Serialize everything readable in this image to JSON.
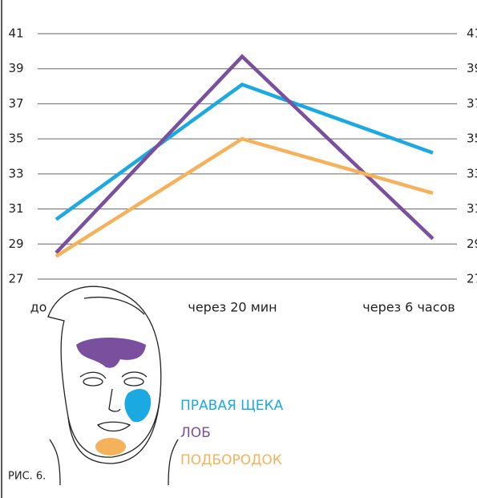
{
  "chart_data": {
    "type": "line",
    "categories": [
      "до",
      "через 20 мин",
      "через 6 часов"
    ],
    "series": [
      {
        "name": "ПРАВАЯ ЩЕКА",
        "color": "#1ba9e1",
        "values": [
          30.4,
          38.1,
          34.2
        ]
      },
      {
        "name": "ЛОБ",
        "color": "#7a4f9e",
        "values": [
          28.5,
          39.7,
          29.3
        ]
      },
      {
        "name": "ПОДБОРОДОК",
        "color": "#f6b25b",
        "values": [
          28.3,
          35.0,
          31.9
        ]
      }
    ],
    "ylim": [
      27,
      41
    ],
    "yticks": [
      27,
      29,
      31,
      33,
      35,
      37,
      39,
      41
    ],
    "grid": true,
    "figure_label": "РИС. 6."
  }
}
